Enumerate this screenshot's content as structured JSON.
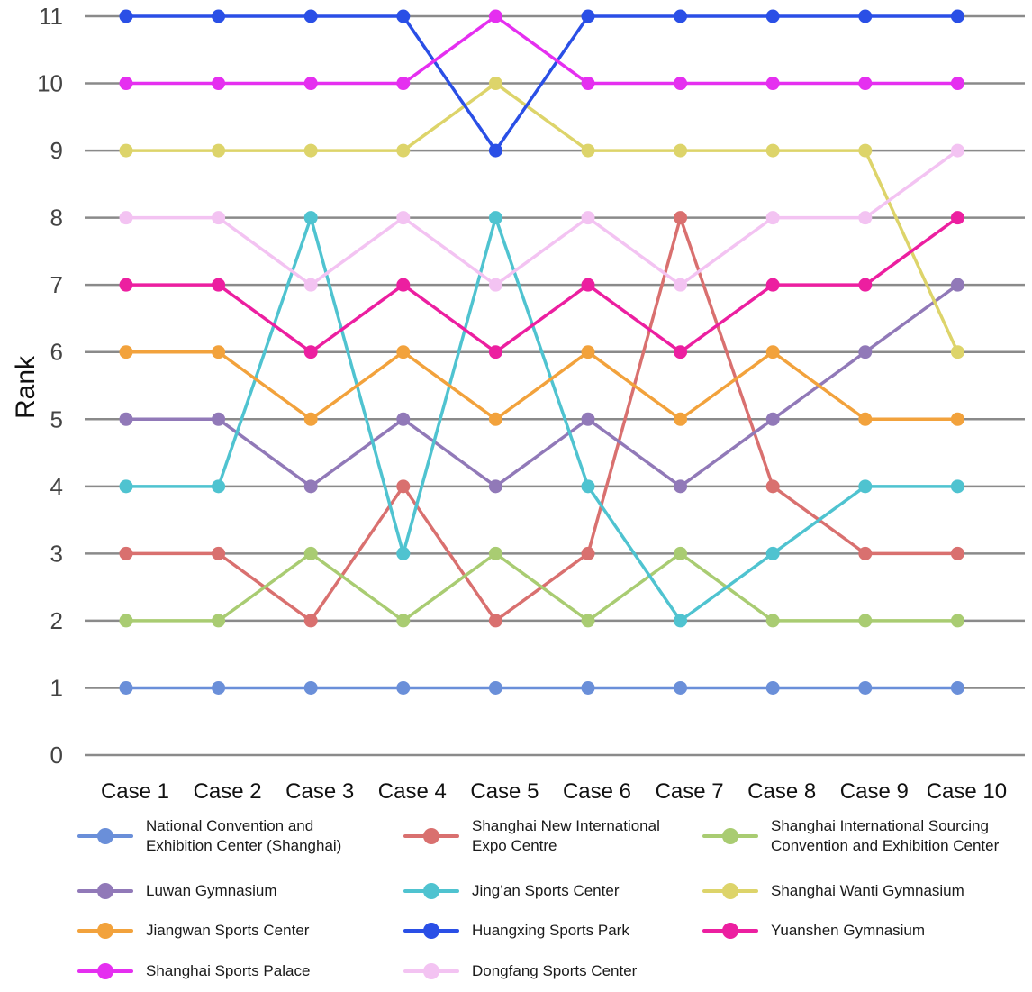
{
  "chart_data": {
    "type": "line",
    "title": "",
    "xlabel": "",
    "ylabel": "Rank",
    "ylim": [
      0,
      11
    ],
    "yticks": [
      "0",
      "1",
      "2",
      "3",
      "4",
      "5",
      "6",
      "7",
      "8",
      "9",
      "10",
      "11"
    ],
    "grid": "horizontal",
    "legend_position": "bottom",
    "categories": [
      "Case 1",
      "Case 2",
      "Case 3",
      "Case 4",
      "Case 5",
      "Case 6",
      "Case 7",
      "Case 8",
      "Case 9",
      "Case 10"
    ],
    "series": [
      {
        "name": "National Convention and\nExhibition Center (Shanghai)",
        "color": "#6a8fd9",
        "values": [
          1,
          1,
          1,
          1,
          1,
          1,
          1,
          1,
          1,
          1
        ]
      },
      {
        "name": "Shanghai New International\nExpo Centre",
        "color": "#d9706f",
        "values": [
          3,
          3,
          2,
          4,
          2,
          3,
          8,
          4,
          3,
          3
        ]
      },
      {
        "name": "Shanghai International Sourcing\nConvention and Exhibition Center",
        "color": "#a9cc72",
        "values": [
          2,
          2,
          3,
          2,
          3,
          2,
          3,
          2,
          2,
          2
        ]
      },
      {
        "name": "Luwan Gymnasium",
        "color": "#9179b8",
        "values": [
          5,
          5,
          4,
          5,
          4,
          5,
          4,
          5,
          6,
          7
        ]
      },
      {
        "name": "Jing’an Sports Center",
        "color": "#4fc3d0",
        "values": [
          4,
          4,
          8,
          3,
          8,
          4,
          2,
          3,
          4,
          4
        ]
      },
      {
        "name": "Shanghai Wanti Gymnasium",
        "color": "#ddd46a",
        "values": [
          9,
          9,
          9,
          9,
          10,
          9,
          9,
          9,
          9,
          6
        ]
      },
      {
        "name": "Jiangwan Sports Center",
        "color": "#f2a23c",
        "values": [
          6,
          6,
          5,
          6,
          5,
          6,
          5,
          6,
          5,
          5
        ]
      },
      {
        "name": "Huangxing Sports Park",
        "color": "#2a4fe6",
        "values": [
          11,
          11,
          11,
          11,
          9,
          11,
          11,
          11,
          11,
          11
        ]
      },
      {
        "name": "Yuanshen Gymnasium",
        "color": "#ec1fa0",
        "values": [
          7,
          7,
          6,
          7,
          6,
          7,
          6,
          7,
          7,
          8
        ]
      },
      {
        "name": "Shanghai Sports Palace",
        "color": "#e52ff0",
        "values": [
          10,
          10,
          10,
          10,
          11,
          10,
          10,
          10,
          10,
          10
        ]
      },
      {
        "name": "Dongfang Sports Center",
        "color": "#f3c3f2",
        "values": [
          8,
          8,
          7,
          8,
          7,
          8,
          7,
          8,
          8,
          9
        ]
      }
    ]
  }
}
